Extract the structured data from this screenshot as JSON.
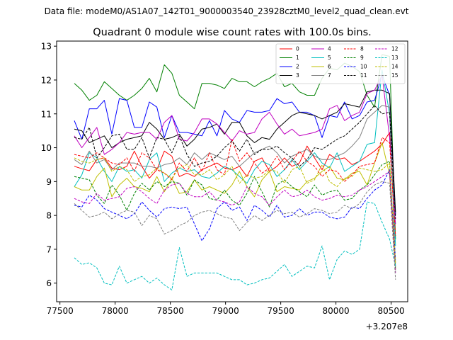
{
  "header": {
    "file_line": "Data file: modeM0/AS1A07_142T01_9000003540_23928cztM0_level2_quad_clean.evt"
  },
  "chart_data": {
    "type": "line",
    "title": "Quadrant 0 module wise count rates with 100.0s bins.",
    "xlabel": "",
    "ylabel": "",
    "x_offset_label": "+3.207e8",
    "xlim": [
      77470,
      80650
    ],
    "ylim": [
      5.45,
      13.15
    ],
    "xticks": [
      77500,
      78000,
      78500,
      79000,
      79500,
      80000,
      80500
    ],
    "xtick_labels": [
      "77500",
      "78000",
      "78500",
      "79000",
      "79500",
      "80000",
      "80500"
    ],
    "yticks": [
      6,
      7,
      8,
      9,
      10,
      11,
      12,
      13
    ],
    "ytick_labels": [
      "6",
      "7",
      "8",
      "9",
      "10",
      "11",
      "12",
      "13"
    ],
    "x": [
      77630,
      77698,
      77766,
      77834,
      77902,
      77970,
      78038,
      78106,
      78174,
      78242,
      78310,
      78378,
      78446,
      78514,
      78582,
      78650,
      78718,
      78786,
      78854,
      78922,
      78990,
      79058,
      79126,
      79194,
      79262,
      79330,
      79398,
      79466,
      79534,
      79602,
      79670,
      79738,
      79806,
      79874,
      79942,
      80010,
      80078,
      80146,
      80214,
      80282,
      80350,
      80418,
      80486,
      80540
    ],
    "series": [
      {
        "name": "0",
        "color": "#ff0000",
        "dash": false,
        "values": [
          9.45,
          9.38,
          9.32,
          9.65,
          9.7,
          9.4,
          9.35,
          9.45,
          9.9,
          9.45,
          9.1,
          9.35,
          9.9,
          9.75,
          9.15,
          9.25,
          9.15,
          9.35,
          9.45,
          9.55,
          9.4,
          9.35,
          9.45,
          9.15,
          9.6,
          9.7,
          9.3,
          9.45,
          9.7,
          9.45,
          9.55,
          10.05,
          9.7,
          9.35,
          9.8,
          9.65,
          9.7,
          9.5,
          9.6,
          9.75,
          9.9,
          10.1,
          10.45,
          8.05
        ]
      },
      {
        "name": "1",
        "color": "#008000",
        "dash": false,
        "values": [
          11.9,
          11.7,
          11.4,
          11.55,
          11.95,
          11.75,
          11.55,
          11.4,
          11.55,
          11.75,
          12.05,
          11.65,
          12.45,
          12.2,
          11.55,
          11.35,
          11.15,
          11.9,
          11.9,
          11.85,
          11.75,
          12.05,
          11.95,
          11.95,
          11.8,
          11.95,
          12.05,
          12.2,
          11.8,
          11.9,
          11.65,
          11.55,
          11.55,
          12.05,
          12.35,
          12.3,
          12.5,
          12.4,
          12.25,
          11.55,
          11.2,
          12.75,
          12.7,
          7.3
        ]
      },
      {
        "name": "2",
        "color": "#0000ff",
        "dash": false,
        "values": [
          10.8,
          10.25,
          11.15,
          11.15,
          11.4,
          10.4,
          11.45,
          11.4,
          10.6,
          10.6,
          11.35,
          11.2,
          10.3,
          10.95,
          10.45,
          10.45,
          10.4,
          10.35,
          10.8,
          10.35,
          11.1,
          10.85,
          10.75,
          11.1,
          11.05,
          11.05,
          11.1,
          11.45,
          11.3,
          11.35,
          11.05,
          11.05,
          10.95,
          10.3,
          10.95,
          10.9,
          11.35,
          10.85,
          10.95,
          11.35,
          11.4,
          12.15,
          11.55,
          8.0
        ]
      },
      {
        "name": "3",
        "color": "#000000",
        "dash": false,
        "values": [
          10.55,
          10.5,
          10.15,
          10.25,
          10.35,
          10.0,
          10.15,
          10.25,
          10.3,
          10.35,
          10.75,
          10.55,
          10.25,
          10.3,
          10.4,
          10.05,
          10.25,
          10.55,
          10.6,
          10.7,
          10.4,
          10.75,
          10.75,
          10.35,
          10.15,
          10.3,
          10.25,
          10.55,
          10.75,
          10.95,
          11.05,
          11.0,
          10.95,
          10.85,
          10.95,
          11.05,
          11.3,
          11.25,
          11.2,
          11.65,
          11.7,
          11.7,
          11.6,
          8.1
        ]
      },
      {
        "name": "4",
        "color": "#c000c0",
        "dash": false,
        "values": [
          10.35,
          10.0,
          10.3,
          10.6,
          9.8,
          9.95,
          10.15,
          10.45,
          10.4,
          10.45,
          10.45,
          10.25,
          10.75,
          10.95,
          10.25,
          10.2,
          10.45,
          10.85,
          10.85,
          10.7,
          10.45,
          10.2,
          10.5,
          10.4,
          10.45,
          10.85,
          11.05,
          10.7,
          10.4,
          10.55,
          10.35,
          10.4,
          10.45,
          10.55,
          11.15,
          11.25,
          10.8,
          10.95,
          11.05,
          11.6,
          11.7,
          12.15,
          10.3,
          7.75
        ]
      },
      {
        "name": "5",
        "color": "#00bfbf",
        "dash": false,
        "values": [
          8.85,
          9.2,
          9.85,
          9.7,
          9.3,
          9.0,
          9.45,
          9.3,
          9.35,
          9.1,
          9.65,
          9.85,
          9.0,
          9.25,
          9.4,
          9.3,
          9.35,
          9.15,
          9.1,
          9.25,
          9.45,
          9.35,
          9.15,
          8.95,
          9.35,
          9.6,
          9.5,
          9.15,
          9.35,
          9.65,
          9.35,
          9.6,
          9.85,
          9.55,
          9.4,
          9.85,
          9.3,
          9.45,
          9.6,
          10.1,
          10.15,
          12.3,
          11.0,
          7.1
        ]
      },
      {
        "name": "6",
        "color": "#bfbf00",
        "dash": false,
        "values": [
          8.85,
          8.75,
          8.75,
          9.15,
          9.4,
          8.55,
          8.9,
          9.1,
          8.85,
          8.8,
          8.7,
          9.15,
          8.7,
          9.1,
          8.65,
          8.7,
          9.05,
          8.75,
          8.85,
          8.75,
          8.65,
          8.9,
          9.3,
          8.85,
          8.55,
          9.05,
          9.3,
          8.7,
          8.85,
          8.8,
          8.75,
          9.0,
          9.1,
          9.3,
          9.45,
          9.1,
          9.05,
          9.25,
          9.3,
          8.9,
          9.55,
          10.15,
          9.2,
          6.4
        ]
      },
      {
        "name": "7",
        "color": "#808080",
        "dash": false,
        "values": [
          9.65,
          9.5,
          9.9,
          9.55,
          9.65,
          9.35,
          9.55,
          9.55,
          9.55,
          9.45,
          9.45,
          9.4,
          9.5,
          9.55,
          9.7,
          9.5,
          9.85,
          9.65,
          9.85,
          9.75,
          9.65,
          9.75,
          9.45,
          9.65,
          9.85,
          9.95,
          10.05,
          9.85,
          9.55,
          9.75,
          9.85,
          9.95,
          9.75,
          9.65,
          9.65,
          9.75,
          9.85,
          10.05,
          10.3,
          10.85,
          11.05,
          11.25,
          11.2,
          6.45
        ]
      },
      {
        "name": "8",
        "color": "#ff0000",
        "dash": true,
        "values": [
          9.8,
          9.75,
          9.7,
          9.85,
          9.7,
          9.55,
          9.5,
          9.7,
          9.3,
          9.85,
          9.7,
          9.35,
          9.25,
          9.05,
          9.55,
          9.3,
          9.7,
          9.3,
          9.85,
          9.35,
          9.2,
          10.25,
          9.6,
          9.85,
          9.55,
          9.25,
          9.4,
          9.75,
          9.35,
          9.6,
          9.9,
          9.6,
          9.45,
          9.15,
          9.35,
          9.3,
          9.0,
          9.2,
          9.45,
          9.5,
          9.55,
          10.3,
          10.15,
          7.4
        ]
      },
      {
        "name": "9",
        "color": "#008000",
        "dash": true,
        "values": [
          9.15,
          9.1,
          9.05,
          8.6,
          8.35,
          8.9,
          8.6,
          8.15,
          8.65,
          8.95,
          8.75,
          9.0,
          8.85,
          9.0,
          8.95,
          8.6,
          9.05,
          8.9,
          8.5,
          8.45,
          8.75,
          8.45,
          8.3,
          8.65,
          9.15,
          8.7,
          8.25,
          8.9,
          9.05,
          8.85,
          8.7,
          8.55,
          8.9,
          8.6,
          8.7,
          8.75,
          8.45,
          8.5,
          8.75,
          8.9,
          9.2,
          9.5,
          9.6,
          6.35
        ]
      },
      {
        "name": "10",
        "color": "#0000ff",
        "dash": true,
        "values": [
          8.3,
          8.25,
          8.6,
          8.45,
          8.2,
          8.1,
          8.0,
          7.9,
          8.05,
          8.4,
          8.15,
          7.95,
          8.2,
          8.25,
          8.2,
          8.25,
          7.75,
          7.25,
          7.6,
          8.2,
          8.4,
          8.15,
          8.25,
          7.85,
          8.3,
          8.15,
          7.95,
          8.3,
          7.95,
          8.0,
          8.2,
          8.0,
          8.1,
          8.1,
          7.95,
          7.9,
          7.95,
          8.25,
          8.2,
          8.5,
          8.75,
          8.9,
          9.35,
          6.7
        ]
      },
      {
        "name": "11",
        "color": "#000000",
        "dash": true,
        "values": [
          10.3,
          10.25,
          10.6,
          9.7,
          10.0,
          10.35,
          10.4,
          9.95,
          9.95,
          10.3,
          9.7,
          10.3,
          10.25,
          9.85,
          10.35,
          9.8,
          9.45,
          9.55,
          9.6,
          9.75,
          10.0,
          10.2,
          9.9,
          10.25,
          9.8,
          9.95,
          9.95,
          10.05,
          9.85,
          9.7,
          9.45,
          9.65,
          10.0,
          9.95,
          10.1,
          10.25,
          10.35,
          10.55,
          10.75,
          11.0,
          11.25,
          11.0,
          11.05,
          7.9
        ]
      },
      {
        "name": "12",
        "color": "#c000c0",
        "dash": true,
        "values": [
          8.5,
          8.4,
          8.35,
          8.65,
          8.45,
          8.5,
          8.55,
          8.8,
          8.85,
          8.7,
          8.5,
          8.35,
          8.75,
          8.9,
          8.95,
          8.65,
          8.55,
          8.55,
          8.7,
          8.45,
          8.4,
          8.3,
          8.4,
          8.85,
          8.65,
          8.55,
          8.3,
          8.55,
          8.75,
          8.55,
          8.6,
          8.75,
          8.55,
          8.45,
          8.5,
          8.6,
          8.55,
          8.6,
          8.75,
          8.85,
          9.0,
          9.15,
          9.3,
          6.3
        ]
      },
      {
        "name": "13",
        "color": "#00bfbf",
        "dash": true,
        "values": [
          6.75,
          6.55,
          6.6,
          6.45,
          6.0,
          5.95,
          6.5,
          6.0,
          6.1,
          6.2,
          6.0,
          6.15,
          5.95,
          5.8,
          7.05,
          6.2,
          6.3,
          6.3,
          6.3,
          6.3,
          6.2,
          6.1,
          6.1,
          5.95,
          6.0,
          6.1,
          6.15,
          6.35,
          6.55,
          6.2,
          6.35,
          6.5,
          6.45,
          7.1,
          6.1,
          6.7,
          6.95,
          6.85,
          7.0,
          8.4,
          8.35,
          7.8,
          7.3,
          6.5
        ]
      },
      {
        "name": "14",
        "color": "#bfbf00",
        "dash": true,
        "values": [
          9.7,
          9.6,
          9.55,
          9.65,
          9.7,
          9.3,
          9.45,
          9.35,
          9.0,
          9.15,
          9.2,
          9.4,
          9.25,
          9.1,
          9.4,
          9.5,
          9.2,
          9.2,
          9.35,
          9.05,
          9.2,
          9.45,
          8.95,
          9.2,
          9.1,
          9.15,
          9.35,
          9.3,
          8.95,
          9.35,
          9.45,
          8.95,
          9.05,
          9.5,
          9.0,
          8.85,
          9.1,
          9.15,
          9.4,
          9.35,
          9.3,
          9.35,
          9.55,
          6.6
        ]
      },
      {
        "name": "15",
        "color": "#808080",
        "dash": true,
        "values": [
          8.35,
          8.15,
          7.95,
          8.0,
          8.1,
          7.9,
          8.05,
          8.15,
          8.1,
          7.7,
          8.0,
          7.9,
          7.45,
          7.55,
          7.7,
          7.8,
          8.0,
          8.1,
          8.15,
          8.05,
          7.95,
          7.9,
          7.55,
          7.8,
          8.0,
          7.85,
          8.0,
          8.15,
          8.05,
          8.1,
          7.95,
          8.05,
          8.2,
          8.15,
          8.05,
          8.1,
          8.3,
          8.2,
          8.35,
          8.7,
          8.9,
          9.0,
          8.95,
          6.1
        ]
      }
    ]
  }
}
